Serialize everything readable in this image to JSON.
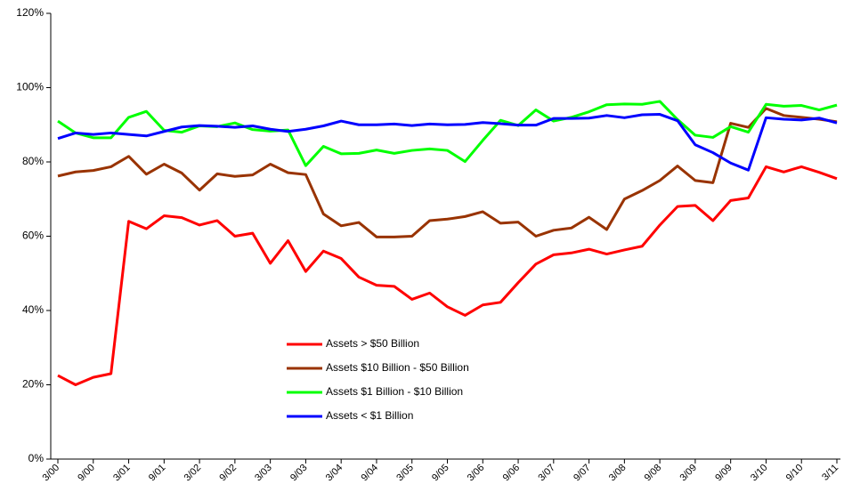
{
  "chart_data": {
    "type": "line",
    "categories": [
      "3/00",
      null,
      "9/00",
      null,
      "3/01",
      null,
      "9/01",
      null,
      "3/02",
      null,
      "9/02",
      null,
      "3/03",
      null,
      "9/03",
      null,
      "3/04",
      null,
      "9/04",
      null,
      "3/05",
      null,
      "9/05",
      null,
      "3/06",
      null,
      "9/06",
      null,
      "3/07",
      null,
      "9/07",
      null,
      "3/08",
      null,
      "9/08",
      null,
      "3/09",
      null,
      "9/09",
      null,
      "3/10",
      null,
      "9/10",
      null,
      "3/11"
    ],
    "series": [
      {
        "name": "Assets > $50 Billion",
        "color": "#ff0000",
        "values": [
          22.5,
          20,
          22,
          23,
          64,
          62,
          65.5,
          65,
          63,
          64.2,
          60,
          60.8,
          52.7,
          58.8,
          50.5,
          56,
          54,
          49,
          46.8,
          46.5,
          43,
          44.7,
          41,
          38.7,
          41.5,
          42.2,
          47.5,
          52.5,
          55,
          55.5,
          56.5,
          55.2,
          56.3,
          57.3,
          63,
          68,
          68.3,
          64.2,
          69.6,
          70.3,
          78.7,
          77.3,
          78.7,
          77.2,
          75.5
        ]
      },
      {
        "name": "Assets $10 Billion - $50 Billion",
        "color": "#993300",
        "values": [
          76.2,
          77.3,
          77.7,
          78.7,
          81.5,
          76.7,
          79.4,
          77,
          72.4,
          76.8,
          76.1,
          76.5,
          79.4,
          77.1,
          76.6,
          66,
          62.8,
          63.7,
          59.8,
          59.8,
          60,
          64.2,
          64.6,
          65.3,
          66.6,
          63.5,
          63.8,
          60,
          61.6,
          62.2,
          65.1,
          61.8,
          70,
          72.3,
          75,
          78.9,
          75,
          74.4,
          90.4,
          89.3,
          94.4,
          92.5,
          92,
          91.5,
          90.8
        ]
      },
      {
        "name": "Assets $1 Billion - $10 Billion",
        "color": "#00ff00",
        "values": [
          91,
          87.8,
          86.5,
          86.5,
          92,
          93.6,
          88.5,
          88,
          89.7,
          89.5,
          90.5,
          88.7,
          88.3,
          88.6,
          79,
          84.2,
          82.2,
          82.3,
          83.2,
          82.3,
          83.1,
          83.5,
          83.1,
          80.1,
          85.8,
          91.2,
          89.8,
          94,
          91,
          92,
          93.5,
          95.4,
          95.6,
          95.5,
          96.3,
          91.4,
          87.2,
          86.6,
          89.5,
          88,
          95.5,
          95,
          95.2,
          94,
          95.3
        ]
      },
      {
        "name": "Assets < $1 Billion",
        "color": "#0000ff",
        "values": [
          86.3,
          87.8,
          87.4,
          87.8,
          87.4,
          87,
          88.2,
          89.4,
          89.8,
          89.6,
          89.3,
          89.7,
          88.8,
          88.2,
          88.8,
          89.7,
          91,
          90,
          90,
          90.2,
          89.8,
          90.2,
          90,
          90.1,
          90.6,
          90.3,
          89.9,
          89.9,
          91.7,
          91.7,
          91.8,
          92.5,
          91.9,
          92.7,
          92.8,
          91.1,
          84.6,
          82.5,
          79.7,
          77.8,
          91.9,
          91.5,
          91.3,
          91.8,
          90.5
        ]
      }
    ],
    "ylim": [
      0,
      120
    ],
    "yticks": [
      {
        "value": 0,
        "label": "0%"
      },
      {
        "value": 20,
        "label": "20%"
      },
      {
        "value": 40,
        "label": "40%"
      },
      {
        "value": 60,
        "label": "60%"
      },
      {
        "value": 80,
        "label": "80%"
      },
      {
        "value": 100,
        "label": "100%"
      },
      {
        "value": 120,
        "label": "120%"
      }
    ],
    "grid": false
  }
}
